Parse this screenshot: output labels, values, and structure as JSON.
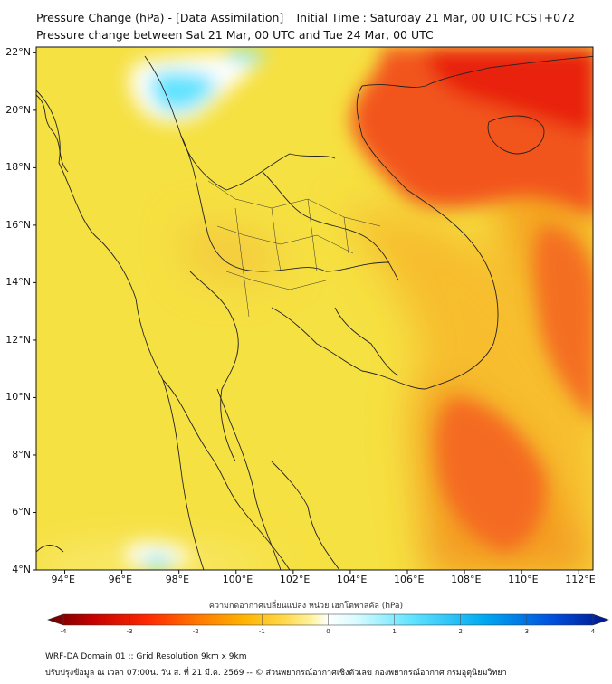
{
  "header": {
    "title_line1": "Pressure Change (hPa) - [Data Assimilation] _ Initial Time : Saturday 21 Mar, 00 UTC FCST+072",
    "title_line2": "Pressure change between Sat 21 Mar, 00 UTC and Tue 24 Mar, 00 UTC"
  },
  "map": {
    "lat_labels": [
      "22°N",
      "20°N",
      "18°N",
      "16°N",
      "14°N",
      "12°N",
      "10°N",
      "8°N",
      "6°N",
      "4°N"
    ],
    "lon_labels": [
      "94°E",
      "96°E",
      "98°E",
      "100°E",
      "102°E",
      "104°E",
      "106°E",
      "108°E",
      "110°E",
      "112°E"
    ],
    "lat_range": [
      4,
      22.2
    ],
    "lon_range": [
      93,
      112.5
    ],
    "base_color": "#f6e142"
  },
  "colorbar": {
    "title": "ความกดอากาศเปลี่ยนแปลง หน่วย เฮกโตพาสคัล (hPa)",
    "tick_labels": [
      "-4",
      "-3",
      "-2",
      "-1",
      "0",
      "1",
      "2",
      "3",
      "4"
    ],
    "range": [
      -4,
      4
    ],
    "colors": [
      "#6b0000",
      "#c40000",
      "#ff2a00",
      "#ff7a00",
      "#ffb300",
      "#ffd84a",
      "#fff3a0",
      "#ffffff",
      "#b7f4ff",
      "#33ddff",
      "#00a8f0",
      "#0050dd",
      "#00148a"
    ]
  },
  "footer": {
    "line1": "WRF-DA Domain 01 :: Grid Resolution 9km x 9km",
    "line2": "ปรับปรุงข้อมูล ณ เวลา 07:00น. วัน ส. ที่ 21 มี.ค. 2569 -- © ส่วนพยากรณ์อากาศเชิงตัวเลข กองพยากรณ์อากาศ กรมอุตุนิยมวิทยา"
  }
}
